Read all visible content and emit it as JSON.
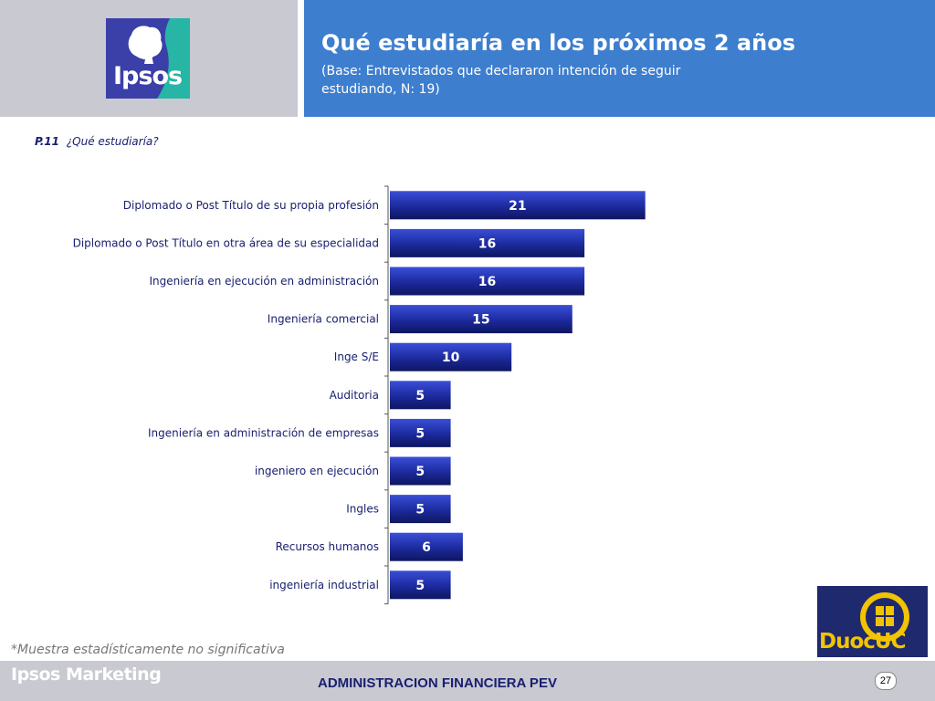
{
  "header": {
    "logo_text": "Ipsos",
    "title": "Qué estudiaría en los próximos 2 años",
    "subtitle": "(Base: Entrevistados que declararon intención de seguir estudiando, N: 19)"
  },
  "question": {
    "number": "P.11",
    "text": "¿Qué estudiaría?"
  },
  "chart_data": {
    "type": "bar",
    "orientation": "horizontal",
    "categories": [
      "Diplomado o Post Título de su propia profesión",
      "Diplomado o Post Título en otra área de su especialidad",
      "Ingeniería en ejecución en administración",
      "Ingeniería comercial",
      "Inge S/E",
      "Auditoria",
      "Ingeniería en administración de empresas",
      "ingeniero en ejecución",
      "Ingles",
      "Recursos humanos",
      "ingeniería industrial"
    ],
    "values": [
      21,
      16,
      16,
      15,
      10,
      5,
      5,
      5,
      5,
      6,
      5
    ],
    "xlim": [
      0,
      44
    ],
    "bar_color": "#1c2a9c",
    "grid": false,
    "legend": false
  },
  "footnote": "*Muestra estadísticamente no significativa",
  "duoc_logo_text": "DuocUC",
  "footer": {
    "brand": "Ipsos Marketing",
    "title": "ADMINISTRACION FINANCIERA PEV",
    "page_number": "27"
  },
  "colors": {
    "header_blue": "#3d7ecf",
    "header_gray": "#c9c9d1",
    "label_text": "#1a2070"
  }
}
